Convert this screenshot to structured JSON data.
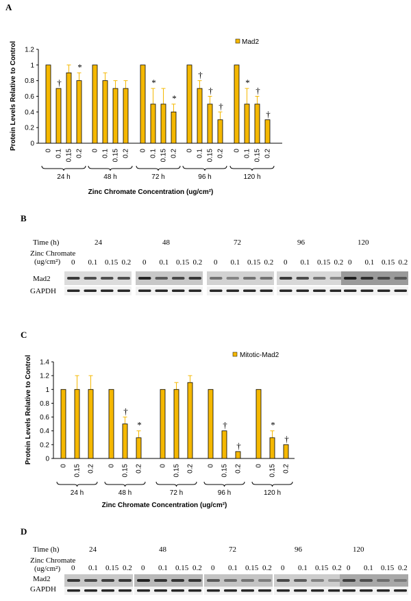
{
  "panels": {
    "a": "A",
    "b": "B",
    "c": "C",
    "d": "D"
  },
  "chart_data": [
    {
      "type": "bar",
      "legend": "Mad2",
      "ylabel": "Protein Levels Relative to Control",
      "xlabel": "Zinc Chromate Concentration (ug/cm²)",
      "ylim": [
        0,
        1.2
      ],
      "yticks": [
        "0",
        "0.2",
        "0.4",
        "0.6",
        "0.8",
        "1",
        "1.2"
      ],
      "groups": [
        {
          "label": "24 h",
          "concs": [
            "0",
            "0.1",
            "0.15",
            "0.2"
          ],
          "values": [
            1,
            0.7,
            0.9,
            0.8
          ],
          "errors": [
            0,
            0,
            0.1,
            0.1
          ],
          "marks": [
            "",
            "†",
            "",
            "*"
          ]
        },
        {
          "label": "48 h",
          "concs": [
            "0",
            "0.1",
            "0.15",
            "0.2"
          ],
          "values": [
            1,
            0.8,
            0.7,
            0.7
          ],
          "errors": [
            0,
            0.1,
            0.1,
            0.1
          ],
          "marks": [
            "",
            "",
            "",
            ""
          ]
        },
        {
          "label": "72 h",
          "concs": [
            "0",
            "0.1",
            "0.15",
            "0.2"
          ],
          "values": [
            1,
            0.5,
            0.5,
            0.4
          ],
          "errors": [
            0,
            0.2,
            0.2,
            0.1
          ],
          "marks": [
            "",
            "*",
            "",
            "*"
          ]
        },
        {
          "label": "96 h",
          "concs": [
            "0",
            "0.1",
            "0.15",
            "0.2"
          ],
          "values": [
            1,
            0.7,
            0.5,
            0.3
          ],
          "errors": [
            0,
            0.1,
            0.1,
            0.1
          ],
          "marks": [
            "",
            "†",
            "†",
            "†"
          ]
        },
        {
          "label": "120 h",
          "concs": [
            "0",
            "0.1",
            "0.15",
            "0.2"
          ],
          "values": [
            1,
            0.5,
            0.5,
            0.3
          ],
          "errors": [
            0,
            0.2,
            0.1,
            0
          ],
          "marks": [
            "",
            "*",
            "†",
            "†"
          ]
        }
      ]
    },
    {
      "type": "bar",
      "legend": "Mitotic-Mad2",
      "ylabel": "Protein Levels Relative to Control",
      "xlabel": "Zinc Chromate Concentration (ug/cm²)",
      "ylim": [
        0,
        1.4
      ],
      "yticks": [
        "0",
        "0.2",
        "0.4",
        "0.6",
        "0.8",
        "1",
        "1.2",
        "1.4"
      ],
      "groups": [
        {
          "label": "24 h",
          "concs": [
            "0",
            "0.15",
            "0.2"
          ],
          "values": [
            1,
            1,
            1
          ],
          "errors": [
            0,
            0.2,
            0.2
          ],
          "marks": [
            "",
            "",
            ""
          ]
        },
        {
          "label": "48 h",
          "concs": [
            "0",
            "0.15",
            "0.2"
          ],
          "values": [
            1,
            0.5,
            0.3
          ],
          "errors": [
            0,
            0.1,
            0.1
          ],
          "marks": [
            "",
            "†",
            "*"
          ]
        },
        {
          "label": "72 h",
          "concs": [
            "0",
            "0.15",
            "0.2"
          ],
          "values": [
            1,
            1,
            1.1
          ],
          "errors": [
            0,
            0.1,
            0.1
          ],
          "marks": [
            "",
            "",
            ""
          ]
        },
        {
          "label": "96 h",
          "concs": [
            "0",
            "0.15",
            "0.2"
          ],
          "values": [
            1,
            0.4,
            0.1
          ],
          "errors": [
            0,
            0,
            0
          ],
          "marks": [
            "",
            "†",
            "†"
          ]
        },
        {
          "label": "120 h",
          "concs": [
            "0",
            "0.15",
            "0.2"
          ],
          "values": [
            1,
            0.3,
            0.2
          ],
          "errors": [
            0,
            0.1,
            0
          ],
          "marks": [
            "",
            "*",
            "†"
          ]
        }
      ]
    }
  ],
  "blots": [
    {
      "time_label": "Time (h)",
      "conc_label_1": "Zinc Chromate",
      "conc_label_2": "(ug/cm²)",
      "times": [
        "24",
        "48",
        "72",
        "96",
        "120"
      ],
      "concs": [
        "0",
        "0.1",
        "0.15",
        "0.2"
      ],
      "rows": [
        "Mad2",
        "GAPDH"
      ]
    },
    {
      "time_label": "Time (h)",
      "conc_label_1": "Zinc Chromate",
      "conc_label_2": "(ug/cm²)",
      "times": [
        "24",
        "48",
        "72",
        "96",
        "120"
      ],
      "concs": [
        "0",
        "0.1",
        "0.15",
        "0.2"
      ],
      "rows": [
        "Mad2",
        "GAPDH"
      ]
    }
  ],
  "colors": {
    "bar": "#F5B800",
    "bar_stroke": "#000000",
    "error": "#F5B800"
  }
}
